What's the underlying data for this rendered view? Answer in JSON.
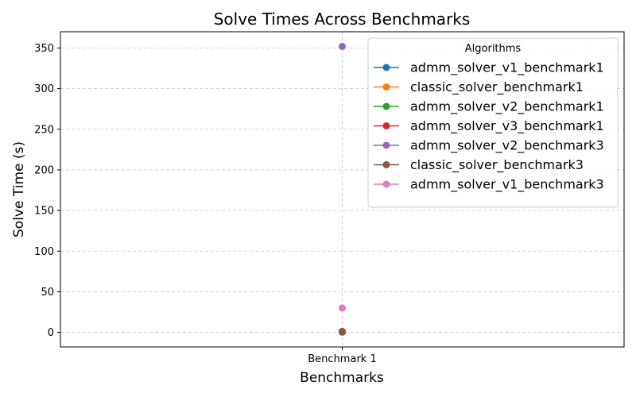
{
  "chart_data": {
    "type": "line",
    "title": "Solve Times Across Benchmarks",
    "xlabel": "Benchmarks",
    "ylabel": "Solve Time (s)",
    "categories": [
      "Benchmark 1"
    ],
    "ylim": [
      -18,
      370
    ],
    "yticks": [
      0,
      50,
      100,
      150,
      200,
      250,
      300,
      350
    ],
    "grid": true,
    "legend": {
      "title": "Algorithms",
      "placement": "upper right"
    },
    "series": [
      {
        "name": "admm_solver_v1_benchmark1",
        "color": "#1f77b4",
        "values": [
          0.5
        ]
      },
      {
        "name": "classic_solver_benchmark1",
        "color": "#ff7f0e",
        "values": [
          1.2
        ]
      },
      {
        "name": "admm_solver_v2_benchmark1",
        "color": "#2ca02c",
        "values": [
          0.8
        ]
      },
      {
        "name": "admm_solver_v3_benchmark1",
        "color": "#d62728",
        "values": [
          1.0
        ]
      },
      {
        "name": "admm_solver_v2_benchmark3",
        "color": "#9467bd",
        "values": [
          352
        ]
      },
      {
        "name": "classic_solver_benchmark3",
        "color": "#8c564b",
        "values": [
          0.3
        ]
      },
      {
        "name": "admm_solver_v1_benchmark3",
        "color": "#e377c2",
        "values": [
          30
        ]
      }
    ]
  }
}
